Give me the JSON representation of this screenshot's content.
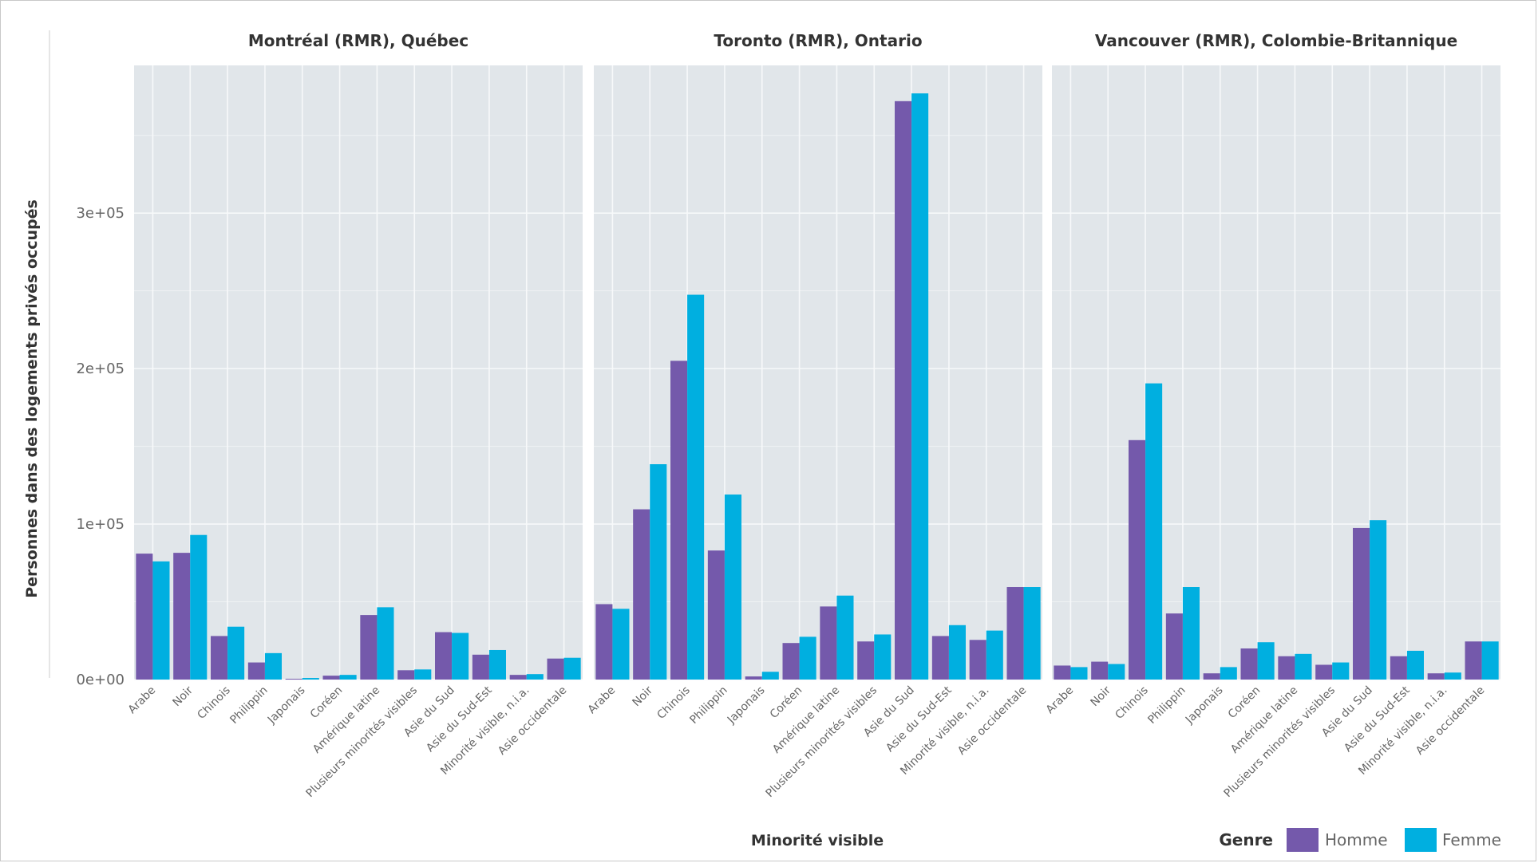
{
  "chart_data": {
    "type": "bar",
    "xlabel": "Minorité visible",
    "ylabel": "Personnes dans des logements privés occupés",
    "ylim": [
      0,
      395000
    ],
    "yticks": [
      0,
      100000,
      200000,
      300000
    ],
    "ytick_labels": [
      "0e+00",
      "1e+05",
      "2e+05",
      "3e+05"
    ],
    "grid": true,
    "legend": {
      "title": "Genre",
      "placement": "bottom-right",
      "entries": [
        {
          "name": "Homme",
          "color": "#7459ab"
        },
        {
          "name": "Femme",
          "color": "#00afe0"
        }
      ]
    },
    "categories": [
      "Arabe",
      "Noir",
      "Chinois",
      "Philippin",
      "Japonais",
      "Coréen",
      "Amérique latine",
      "Plusieurs minorités visibles",
      "Asie du Sud",
      "Asie du Sud-Est",
      "Minorité visible, n.i.a.",
      "Asie occidentale"
    ],
    "panels": [
      {
        "title": "Montréal (RMR), Québec",
        "series": [
          {
            "name": "Homme",
            "values": [
              81000,
              81500,
              28000,
              11000,
              500,
              2500,
              41500,
              6000,
              30500,
              16000,
              3000,
              13500
            ]
          },
          {
            "name": "Femme",
            "values": [
              76000,
              93000,
              34000,
              17000,
              1000,
              3000,
              46500,
              6500,
              30000,
              19000,
              3500,
              14000
            ]
          }
        ]
      },
      {
        "title": "Toronto (RMR), Ontario",
        "series": [
          {
            "name": "Homme",
            "values": [
              48500,
              109500,
              205000,
              83000,
              2000,
              23500,
              47000,
              24500,
              372000,
              28000,
              25500,
              59500
            ]
          },
          {
            "name": "Femme",
            "values": [
              45500,
              138500,
              247500,
              119000,
              5000,
              27500,
              54000,
              29000,
              377000,
              35000,
              31500,
              59500
            ]
          }
        ]
      },
      {
        "title": "Vancouver (RMR), Colombie-Britannique",
        "series": [
          {
            "name": "Homme",
            "values": [
              9000,
              11500,
              154000,
              42500,
              4000,
              20000,
              15000,
              9500,
              97500,
              15000,
              4000,
              24500
            ]
          },
          {
            "name": "Femme",
            "values": [
              8000,
              10000,
              190500,
              59500,
              8000,
              24000,
              16500,
              11000,
              102500,
              18500,
              4500,
              24500
            ]
          }
        ]
      }
    ]
  }
}
